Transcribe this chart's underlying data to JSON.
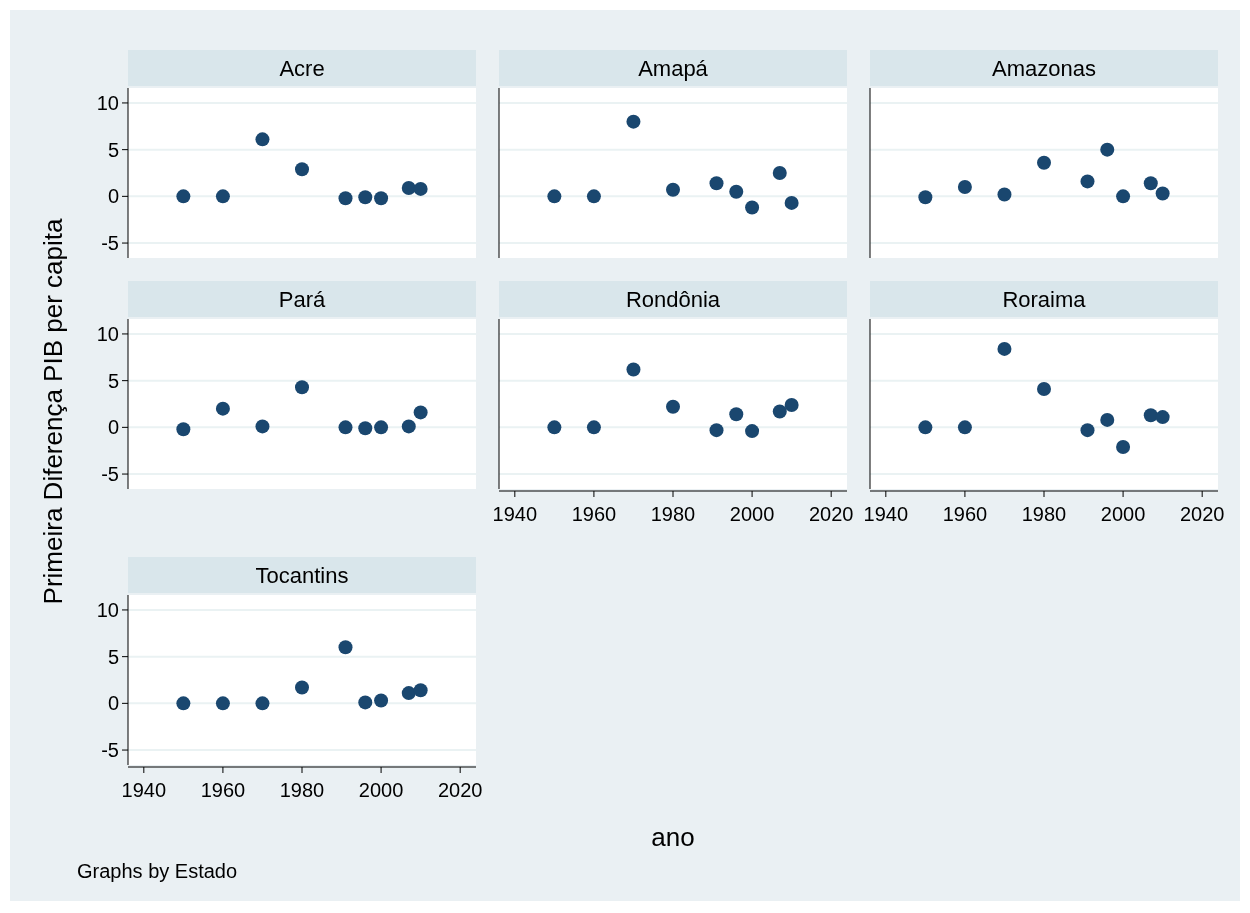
{
  "chart_data": [
    {
      "type": "scatter",
      "title": "Acre",
      "x": [
        1950,
        1960,
        1970,
        1980,
        1991,
        1996,
        2000,
        2007,
        2010
      ],
      "series": [
        {
          "color": "#1a476f",
          "values": [
            0,
            0,
            6.1,
            2.9,
            -0.2,
            -0.1,
            -0.2,
            0.9,
            0.8
          ]
        }
      ],
      "xlim": [
        1936,
        2024
      ],
      "ylim": [
        -6.6,
        11.6
      ],
      "yticks": [
        -5,
        0,
        5,
        10
      ],
      "grid": "y",
      "marker": "circle",
      "tick_labels": "y"
    },
    {
      "type": "scatter",
      "title": "Amapá",
      "x": [
        1950,
        1960,
        1970,
        1980,
        1991,
        1996,
        2000,
        2007,
        2010
      ],
      "series": [
        {
          "color": "#1a476f",
          "values": [
            0,
            0,
            8.0,
            0.7,
            1.4,
            0.5,
            -1.2,
            2.5,
            -0.7
          ]
        }
      ],
      "xlim": [
        1936,
        2024
      ],
      "ylim": [
        -6.6,
        11.6
      ],
      "yticks": [
        -5,
        0,
        5,
        10
      ],
      "grid": "y",
      "marker": "circle",
      "tick_labels": false
    },
    {
      "type": "scatter",
      "title": "Amazonas",
      "x": [
        1950,
        1960,
        1970,
        1980,
        1991,
        1996,
        2000,
        2007,
        2010
      ],
      "series": [
        {
          "color": "#1a476f",
          "values": [
            -0.1,
            1.0,
            0.2,
            3.6,
            1.6,
            5.0,
            0,
            1.4,
            0.3
          ]
        }
      ],
      "xlim": [
        1936,
        2024
      ],
      "ylim": [
        -6.6,
        11.6
      ],
      "yticks": [
        -5,
        0,
        5,
        10
      ],
      "grid": "y",
      "marker": "circle",
      "tick_labels": false
    },
    {
      "type": "scatter",
      "title": "Pará",
      "ylabel": "Primeira Diferença PIB per capita",
      "x": [
        1950,
        1960,
        1970,
        1980,
        1991,
        1996,
        2000,
        2007,
        2010
      ],
      "series": [
        {
          "color": "#1a476f",
          "values": [
            -0.2,
            2.0,
            0.1,
            4.3,
            0,
            -0.1,
            0,
            0.1,
            1.6
          ]
        }
      ],
      "xlim": [
        1936,
        2024
      ],
      "ylim": [
        -6.6,
        11.6
      ],
      "yticks": [
        -5,
        0,
        5,
        10
      ],
      "grid": "y",
      "marker": "circle",
      "tick_labels": "y"
    },
    {
      "type": "scatter",
      "title": "Rondônia",
      "xlabel": "ano",
      "x": [
        1950,
        1960,
        1970,
        1980,
        1991,
        1996,
        2000,
        2007,
        2010
      ],
      "series": [
        {
          "color": "#1a476f",
          "values": [
            0,
            0,
            6.2,
            2.2,
            -0.3,
            1.4,
            -0.4,
            1.7,
            2.4
          ]
        }
      ],
      "xlim": [
        1936,
        2024
      ],
      "xticks": [
        1940,
        1960,
        1980,
        2000,
        2020
      ],
      "ylim": [
        -6.6,
        11.6
      ],
      "yticks": [
        -5,
        0,
        5,
        10
      ],
      "grid": "y",
      "marker": "circle",
      "tick_labels": "x"
    },
    {
      "type": "scatter",
      "title": "Roraima",
      "x": [
        1950,
        1960,
        1970,
        1980,
        1991,
        1996,
        2000,
        2007,
        2010
      ],
      "series": [
        {
          "color": "#1a476f",
          "values": [
            0,
            0,
            8.4,
            4.1,
            -0.3,
            0.8,
            -2.1,
            1.3,
            1.1
          ]
        }
      ],
      "xlim": [
        1936,
        2024
      ],
      "xticks": [
        1940,
        1960,
        1980,
        2000,
        2020
      ],
      "ylim": [
        -6.6,
        11.6
      ],
      "yticks": [
        -5,
        0,
        5,
        10
      ],
      "grid": "y",
      "marker": "circle",
      "tick_labels": "x"
    },
    {
      "type": "scatter",
      "title": "Tocantins",
      "annotations": [
        "Graphs by Estado"
      ],
      "x": [
        1950,
        1960,
        1970,
        1980,
        1991,
        1996,
        2000,
        2007,
        2010
      ],
      "series": [
        {
          "color": "#1a476f",
          "values": [
            0,
            0,
            0,
            1.7,
            6.0,
            0.1,
            0.3,
            1.1,
            1.4
          ]
        }
      ],
      "xlim": [
        1936,
        2024
      ],
      "xticks": [
        1940,
        1960,
        1980,
        2000,
        2020
      ],
      "ylim": [
        -6.6,
        11.6
      ],
      "yticks": [
        -5,
        0,
        5,
        10
      ],
      "grid": "y",
      "marker": "circle"
    }
  ]
}
